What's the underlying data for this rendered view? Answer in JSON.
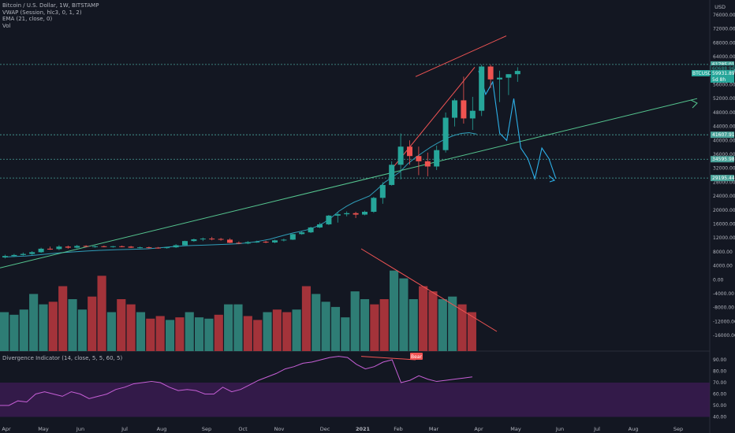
{
  "header": {
    "symbol_line": "Bitcoin / U.S. Dollar, 1W, BITSTAMP",
    "vwap_line": "VWAP (Session, hlc3, 0, 1, 2)",
    "ema_line": "EMA (21, close, 0)",
    "vol_line": "Vol",
    "currency": "USD"
  },
  "oscillator": {
    "title": "Divergence Indicator (14, close, 5, 5, 60, 5)",
    "bear_label": "Bear"
  },
  "colors": {
    "background": "#131722",
    "up": "#26a69a",
    "down": "#ef5350",
    "vol_up": "#2e7d75",
    "vol_down": "#a3333a",
    "ema": "#2f9db8",
    "trendline": "#55c58f",
    "wedge": "#f05454",
    "projection": "#2db0e8",
    "dashed": "#4aa39a",
    "osc_line": "#c65fd6",
    "osc_band": "#3a1b50"
  },
  "chart_data": [
    {
      "type": "candlestick",
      "title": "Bitcoin / U.S. Dollar, 1W, BITSTAMP",
      "y_axis": {
        "label": "USD",
        "ylim": [
          -16000,
          76000
        ],
        "ticks": [
          "76000.00",
          "72000.00",
          "68000.00",
          "64000.00",
          "60000.00",
          "56000.00",
          "52000.00",
          "48000.00",
          "44000.00",
          "40000.00",
          "36000.00",
          "32000.00",
          "28000.00",
          "24000.00",
          "20000.00",
          "16000.00",
          "12000.00",
          "8000.00",
          "4000.00",
          "0.00",
          "-4000.00",
          "-8000.00",
          "-12000.00",
          "-16000.00"
        ]
      },
      "x_axis": {
        "ticks": [
          "Apr",
          "May",
          "Jun",
          "Jul",
          "Aug",
          "Sep",
          "Oct",
          "Nov",
          "Dec",
          "2021",
          "Feb",
          "Mar",
          "Apr",
          "May",
          "Jun",
          "Jul",
          "Aug",
          "Sep"
        ]
      },
      "candles": [
        {
          "o": 6400,
          "h": 7200,
          "l": 6100,
          "c": 6800
        },
        {
          "o": 6800,
          "h": 7400,
          "l": 6500,
          "c": 7100
        },
        {
          "o": 7100,
          "h": 7800,
          "l": 6900,
          "c": 7400
        },
        {
          "o": 7400,
          "h": 8200,
          "l": 7100,
          "c": 7900
        },
        {
          "o": 7900,
          "h": 9200,
          "l": 7700,
          "c": 8900
        },
        {
          "o": 8900,
          "h": 9500,
          "l": 8600,
          "c": 8800
        },
        {
          "o": 8800,
          "h": 9900,
          "l": 8500,
          "c": 9500
        },
        {
          "o": 9500,
          "h": 9800,
          "l": 8900,
          "c": 9200
        },
        {
          "o": 9200,
          "h": 10000,
          "l": 9000,
          "c": 9700
        },
        {
          "o": 9700,
          "h": 9900,
          "l": 9300,
          "c": 9500
        },
        {
          "o": 9500,
          "h": 9800,
          "l": 9200,
          "c": 9600
        },
        {
          "o": 9600,
          "h": 9800,
          "l": 9300,
          "c": 9400
        },
        {
          "o": 9400,
          "h": 9700,
          "l": 9200,
          "c": 9600
        },
        {
          "o": 9600,
          "h": 9800,
          "l": 9300,
          "c": 9500
        },
        {
          "o": 9500,
          "h": 9700,
          "l": 9100,
          "c": 9200
        },
        {
          "o": 9200,
          "h": 9500,
          "l": 9000,
          "c": 9300
        },
        {
          "o": 9300,
          "h": 9500,
          "l": 9000,
          "c": 9200
        },
        {
          "o": 9200,
          "h": 9400,
          "l": 8900,
          "c": 9100
        },
        {
          "o": 9100,
          "h": 9400,
          "l": 8900,
          "c": 9300
        },
        {
          "o": 9300,
          "h": 10200,
          "l": 9100,
          "c": 9900
        },
        {
          "o": 9900,
          "h": 11200,
          "l": 9800,
          "c": 11100
        },
        {
          "o": 11100,
          "h": 11800,
          "l": 10900,
          "c": 11600
        },
        {
          "o": 11600,
          "h": 12100,
          "l": 11100,
          "c": 11800
        },
        {
          "o": 11800,
          "h": 12300,
          "l": 11300,
          "c": 11700
        },
        {
          "o": 11700,
          "h": 12000,
          "l": 11200,
          "c": 11500
        },
        {
          "o": 11500,
          "h": 11900,
          "l": 10500,
          "c": 10600
        },
        {
          "o": 10600,
          "h": 11000,
          "l": 10200,
          "c": 10400
        },
        {
          "o": 10400,
          "h": 11100,
          "l": 10200,
          "c": 10800
        },
        {
          "o": 10800,
          "h": 11200,
          "l": 10600,
          "c": 10900
        },
        {
          "o": 10900,
          "h": 11200,
          "l": 10500,
          "c": 10700
        },
        {
          "o": 10700,
          "h": 11500,
          "l": 10500,
          "c": 11300
        },
        {
          "o": 11300,
          "h": 11800,
          "l": 11000,
          "c": 11500
        },
        {
          "o": 11500,
          "h": 13200,
          "l": 11400,
          "c": 13100
        },
        {
          "o": 13100,
          "h": 13900,
          "l": 12900,
          "c": 13600
        },
        {
          "o": 13600,
          "h": 15200,
          "l": 13400,
          "c": 15000
        },
        {
          "o": 15000,
          "h": 16400,
          "l": 14800,
          "c": 15900
        },
        {
          "o": 15900,
          "h": 18600,
          "l": 15700,
          "c": 18400
        },
        {
          "o": 18400,
          "h": 19400,
          "l": 16400,
          "c": 18800
        },
        {
          "o": 18800,
          "h": 19600,
          "l": 18200,
          "c": 19100
        },
        {
          "o": 19100,
          "h": 19500,
          "l": 17700,
          "c": 18700
        },
        {
          "o": 18700,
          "h": 19800,
          "l": 18500,
          "c": 19500
        },
        {
          "o": 19500,
          "h": 23800,
          "l": 19200,
          "c": 23500
        },
        {
          "o": 23500,
          "h": 28000,
          "l": 21800,
          "c": 27200
        },
        {
          "o": 27200,
          "h": 34000,
          "l": 27000,
          "c": 33000
        },
        {
          "o": 33000,
          "h": 42000,
          "l": 28800,
          "c": 38200
        },
        {
          "o": 38200,
          "h": 40000,
          "l": 33000,
          "c": 35500
        },
        {
          "o": 35500,
          "h": 38200,
          "l": 30000,
          "c": 34000
        },
        {
          "o": 34000,
          "h": 36500,
          "l": 29700,
          "c": 32500
        },
        {
          "o": 32500,
          "h": 38500,
          "l": 31500,
          "c": 37200
        },
        {
          "o": 37200,
          "h": 48000,
          "l": 36500,
          "c": 46500
        },
        {
          "o": 46500,
          "h": 52000,
          "l": 44000,
          "c": 51500
        },
        {
          "o": 51500,
          "h": 58300,
          "l": 44800,
          "c": 46300
        },
        {
          "o": 46300,
          "h": 52500,
          "l": 43000,
          "c": 48500
        },
        {
          "o": 48500,
          "h": 61700,
          "l": 47000,
          "c": 61200
        },
        {
          "o": 61200,
          "h": 61700,
          "l": 55000,
          "c": 57500
        },
        {
          "o": 57500,
          "h": 60000,
          "l": 51000,
          "c": 58000
        },
        {
          "o": 58000,
          "h": 59000,
          "l": 53000,
          "c": 59000
        },
        {
          "o": 59000,
          "h": 61000,
          "l": 56800,
          "c": 59930
        }
      ],
      "ema_21": [
        6500,
        6600,
        6700,
        6800,
        7000,
        7200,
        7400,
        7600,
        7800,
        7950,
        8100,
        8230,
        8350,
        8460,
        8550,
        8620,
        8680,
        8730,
        8790,
        8880,
        9050,
        9250,
        9450,
        9620,
        9760,
        9840,
        9900,
        9990,
        10080,
        10140,
        10240,
        10340,
        10590,
        10870,
        11240,
        11660,
        12270,
        12860,
        13430,
        13890,
        14400,
        15220,
        16310,
        17800,
        19670,
        21100,
        22270,
        23150,
        24050,
        25950,
        28000,
        29470,
        30990,
        33300,
        35050,
        36590,
        38080,
        39340,
        40500,
        41400,
        42000,
        42200,
        41800
      ],
      "price_levels": [
        {
          "label": "61785.01",
          "value": 61785
        },
        {
          "label": "41607.91",
          "value": 41608
        },
        {
          "label": "34595.98",
          "value": 34596
        },
        {
          "label": "29195.44",
          "value": 29195
        }
      ],
      "price_tags": [
        {
          "label": "60688.96",
          "value": 60689,
          "kind": "marker"
        },
        {
          "label": "BTCUSD",
          "value": 58500,
          "kind": "symbol"
        },
        {
          "label": "59931.89",
          "value": 58500,
          "kind": "last"
        },
        {
          "label": "5d 8h",
          "value": 57000,
          "kind": "countdown"
        }
      ],
      "projection_path": [
        [
          59930,
          0
        ],
        [
          53200,
          2
        ],
        [
          56800,
          4
        ],
        [
          42000,
          6
        ],
        [
          40000,
          8
        ],
        [
          52000,
          10
        ],
        [
          37800,
          12
        ],
        [
          34800,
          14
        ],
        [
          29000,
          16
        ],
        [
          37800,
          18
        ],
        [
          34800,
          20
        ],
        [
          29000,
          22
        ]
      ],
      "trendline": [
        [
          3400,
          0
        ],
        [
          52000,
          1
        ]
      ],
      "wedge_upper": [
        [
          58300,
          0
        ],
        [
          70000,
          1
        ]
      ],
      "wedge_lower": [
        [
          31000,
          0
        ],
        [
          61000,
          1
        ]
      ]
    },
    {
      "type": "bar",
      "title": "Vol",
      "series": [
        {
          "values": [
            30,
            28,
            32,
            44,
            36,
            38,
            50,
            40,
            32,
            42,
            58,
            30,
            40,
            36,
            30,
            25,
            27,
            24,
            26,
            30,
            26,
            25,
            28,
            36,
            36,
            27,
            24,
            30,
            32,
            30,
            32,
            50,
            44,
            38,
            34,
            26,
            46,
            40,
            36,
            40,
            62,
            56,
            40,
            50,
            46,
            40,
            42,
            36,
            30
          ]
        }
      ],
      "directions": "uuuuudduudduddudduduuuduuddudduduuuuuudduuudduudd"
    },
    {
      "type": "line",
      "title": "Divergence Indicator (14, close, 5, 5, 60, 5)",
      "y_axis": {
        "ticks": [
          "90.00",
          "80.00",
          "70.00",
          "60.00",
          "50.00",
          "40.00"
        ],
        "ylim": [
          35,
          96
        ]
      },
      "band": [
        40,
        70
      ],
      "values": [
        50,
        50,
        54,
        53,
        60,
        62,
        60,
        58,
        62,
        60,
        56,
        58,
        60,
        64,
        66,
        69,
        70,
        71,
        70,
        66,
        63,
        64,
        63,
        60,
        60,
        66,
        62,
        64,
        68,
        72,
        75,
        78,
        82,
        84,
        87,
        88,
        90,
        92,
        93,
        92,
        86,
        82,
        84,
        88,
        90,
        70,
        72,
        76,
        73,
        71,
        72,
        73,
        74,
        75
      ],
      "divergence": {
        "from": [
          93,
          38
        ],
        "to": [
          90,
          44
        ],
        "label": "Bear"
      }
    }
  ]
}
